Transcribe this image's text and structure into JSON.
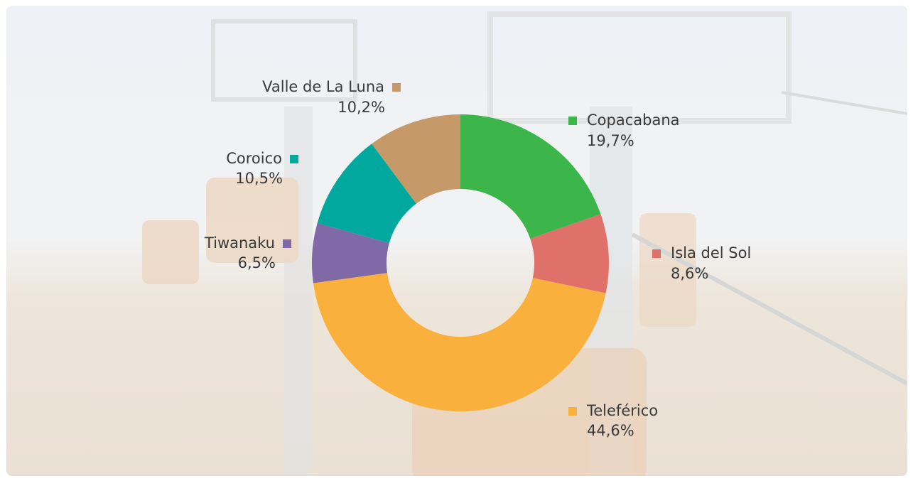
{
  "chart_data": {
    "type": "donut",
    "categories": [
      "Copacabana",
      "Isla del Sol",
      "Teleférico",
      "Tiwanaku",
      "Coroico",
      "Valle de La Luna"
    ],
    "values": [
      19.7,
      8.6,
      44.6,
      6.5,
      10.5,
      10.2
    ],
    "value_labels": [
      "19,7%",
      "8,6%",
      "44,6%",
      "6,5%",
      "10,5%",
      "10,2%"
    ],
    "colors": [
      "#3cb54a",
      "#e0706a",
      "#f9b03d",
      "#7f69a6",
      "#00a89e",
      "#c59a68"
    ]
  }
}
